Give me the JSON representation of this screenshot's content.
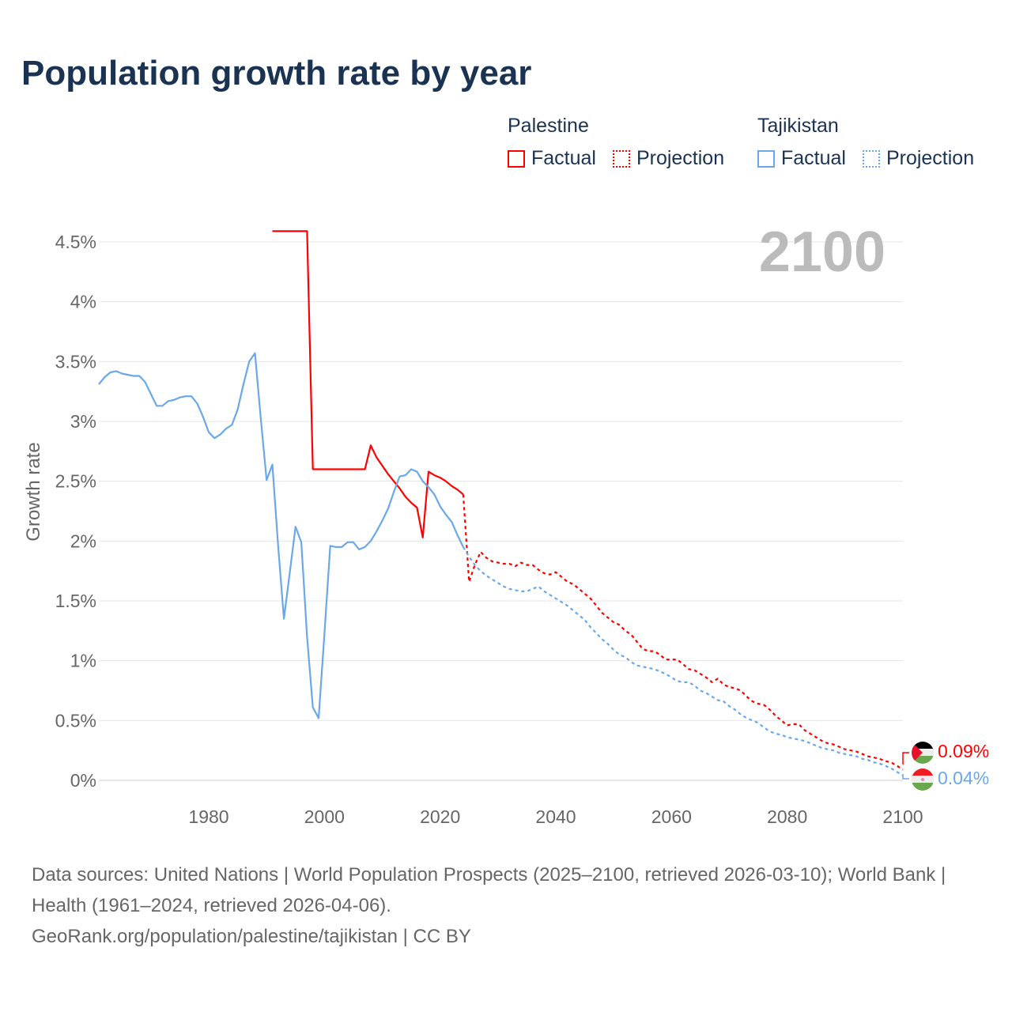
{
  "title": "Population growth rate by year",
  "legend": {
    "groups": [
      {
        "name": "Palestine",
        "factual": "Factual",
        "projection": "Projection",
        "color": "#ff0000"
      },
      {
        "name": "Tajikistan",
        "factual": "Factual",
        "projection": "Projection",
        "color": "#6aa8e8"
      }
    ]
  },
  "current_year": "2100",
  "end_labels": {
    "palestine": "0.09%",
    "tajikistan": "0.04%"
  },
  "footer": {
    "line1": "Data sources: United Nations | World Population Prospects (2025–2100, retrieved 2026-03-10); World Bank | Health (1961–2024, retrieved 2026-04-06).",
    "line2": "GeoRank.org/population/palestine/tajikistan | CC BY"
  },
  "chart_data": {
    "type": "line",
    "title": "Population growth rate by year",
    "xlabel": "",
    "ylabel": "Growth rate",
    "xlim": [
      1961,
      2100
    ],
    "ylim": [
      0,
      4.5
    ],
    "xticks": [
      "1980",
      "2000",
      "2020",
      "2040",
      "2060",
      "2080",
      "2100"
    ],
    "yticks": [
      "0%",
      "0.5%",
      "1%",
      "1.5%",
      "2%",
      "2.5%",
      "3%",
      "3.5%",
      "4%",
      "4.5%"
    ],
    "grid": true,
    "series": [
      {
        "name": "Palestine Factual",
        "color": "#ff0000",
        "dashed": false,
        "start": 1991,
        "values": [
          4.59,
          4.59,
          4.59,
          4.59,
          4.59,
          4.59,
          4.59,
          2.6,
          2.6,
          2.6,
          2.6,
          2.6,
          2.6,
          2.6,
          2.6,
          2.6,
          2.6,
          2.8,
          2.7,
          2.63,
          2.56,
          2.5,
          2.44,
          2.37,
          2.32,
          2.28,
          2.03,
          2.58,
          2.55,
          2.53,
          2.5,
          2.46,
          2.43,
          2.39
        ]
      },
      {
        "name": "Palestine Projection",
        "color": "#ff0000",
        "dashed": true,
        "start": 2024,
        "values": [
          2.39,
          1.66,
          1.8,
          1.91,
          1.86,
          1.83,
          1.82,
          1.81,
          1.81,
          1.79,
          1.82,
          1.8,
          1.8,
          1.76,
          1.73,
          1.72,
          1.74,
          1.7,
          1.66,
          1.64,
          1.6,
          1.56,
          1.52,
          1.46,
          1.4,
          1.36,
          1.32,
          1.3,
          1.25,
          1.22,
          1.16,
          1.1,
          1.08,
          1.08,
          1.05,
          1.01,
          1.01,
          1.01,
          0.97,
          0.93,
          0.92,
          0.89,
          0.86,
          0.82,
          0.85,
          0.8,
          0.78,
          0.77,
          0.75,
          0.7,
          0.66,
          0.64,
          0.63,
          0.59,
          0.54,
          0.5,
          0.46,
          0.47,
          0.47,
          0.42,
          0.39,
          0.36,
          0.33,
          0.31,
          0.3,
          0.28,
          0.26,
          0.25,
          0.24,
          0.22,
          0.2,
          0.19,
          0.18,
          0.16,
          0.15,
          0.12,
          0.09
        ]
      },
      {
        "name": "Tajikistan Factual",
        "color": "#6aa8e8",
        "dashed": false,
        "start": 1961,
        "values": [
          3.31,
          3.37,
          3.41,
          3.42,
          3.4,
          3.39,
          3.38,
          3.38,
          3.33,
          3.23,
          3.13,
          3.13,
          3.17,
          3.18,
          3.2,
          3.21,
          3.21,
          3.15,
          3.04,
          2.91,
          2.86,
          2.89,
          2.94,
          2.97,
          3.1,
          3.31,
          3.5,
          3.57,
          3.02,
          2.51,
          2.64,
          1.96,
          1.35,
          1.73,
          2.12,
          1.99,
          1.2,
          0.61,
          0.52,
          1.22,
          1.96,
          1.95,
          1.95,
          1.99,
          1.99,
          1.93,
          1.95,
          2.0,
          2.08,
          2.17,
          2.27,
          2.41,
          2.54,
          2.55,
          2.6,
          2.58,
          2.5,
          2.45,
          2.39,
          2.29,
          2.22,
          2.16,
          2.05,
          1.95
        ]
      },
      {
        "name": "Tajikistan Projection",
        "color": "#6aa8e8",
        "dashed": true,
        "start": 2024,
        "values": [
          1.95,
          1.87,
          1.8,
          1.75,
          1.71,
          1.68,
          1.65,
          1.62,
          1.6,
          1.59,
          1.58,
          1.58,
          1.6,
          1.62,
          1.58,
          1.55,
          1.52,
          1.49,
          1.46,
          1.42,
          1.38,
          1.34,
          1.28,
          1.23,
          1.18,
          1.14,
          1.09,
          1.05,
          1.03,
          0.99,
          0.96,
          0.95,
          0.94,
          0.93,
          0.91,
          0.89,
          0.86,
          0.83,
          0.82,
          0.82,
          0.79,
          0.75,
          0.73,
          0.7,
          0.67,
          0.66,
          0.62,
          0.59,
          0.55,
          0.52,
          0.5,
          0.48,
          0.44,
          0.41,
          0.39,
          0.38,
          0.36,
          0.35,
          0.34,
          0.33,
          0.31,
          0.29,
          0.27,
          0.26,
          0.25,
          0.23,
          0.22,
          0.21,
          0.2,
          0.18,
          0.17,
          0.15,
          0.14,
          0.12,
          0.1,
          0.07,
          0.04
        ]
      }
    ]
  }
}
